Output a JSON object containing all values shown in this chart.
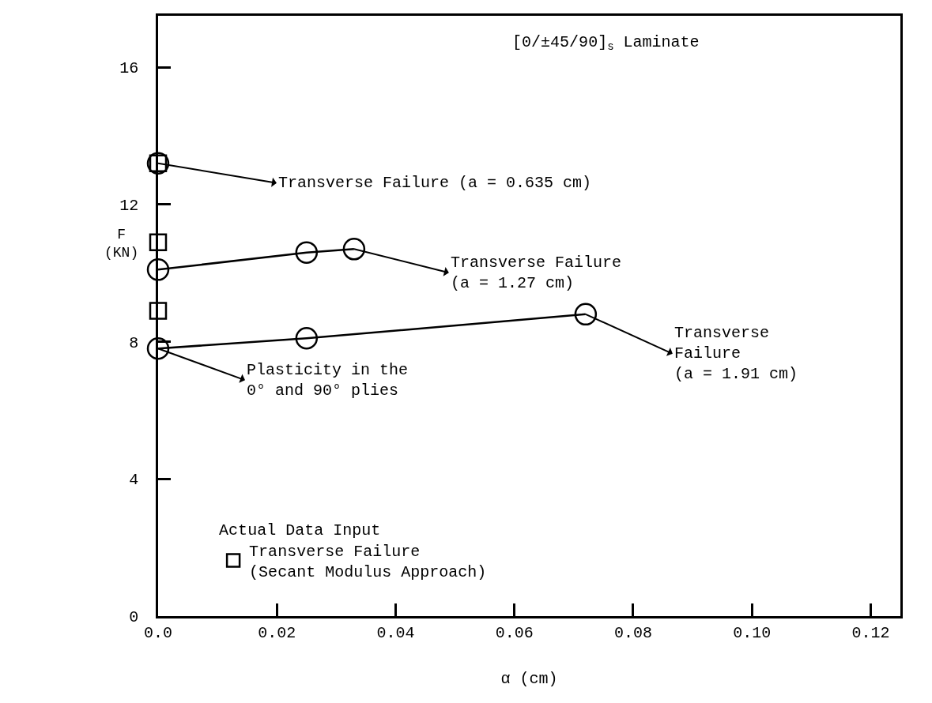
{
  "chart_data": {
    "type": "line",
    "title": "[0/±45/90]$_{s}$ Laminate",
    "xlabel": "α (cm)",
    "ylabel": "F\n(KN)",
    "legend_title": "Actual Data Input",
    "series": [
      {
        "color": "#000000",
        "x": [
          0.0
        ],
        "values": [
          13.2
        ]
      },
      {
        "color": "#000000",
        "x": [
          0.0,
          0.025,
          0.033
        ],
        "values": [
          10.1,
          10.6,
          10.7
        ]
      },
      {
        "color": "#000000",
        "x": [
          0.0,
          0.025,
          0.072
        ],
        "values": [
          7.8,
          8.1,
          8.8
        ]
      },
      {
        "type": "scatter",
        "name": "Transverse Failure\n(Secant Modulus Approach)",
        "color": "#000000",
        "marker": "square",
        "x": [
          0.0,
          0.0,
          0.0
        ],
        "values": [
          13.2,
          10.9,
          8.9
        ]
      }
    ],
    "marker": "circle",
    "annotations": [
      {
        "text": "Transverse Failure (a = 0.635 cm)",
        "x": 0.0,
        "y": 13.2
      },
      {
        "text": "Transverse Failure\n(a = 1.27 cm)",
        "x": 0.033,
        "y": 10.7
      },
      {
        "text": "Transverse\nFailure\n(a = 1.91 cm)",
        "x": 0.072,
        "y": 8.8
      },
      {
        "text": "Plasticity in the\n0° and 90° plies",
        "x": 0.0,
        "y": 7.8
      }
    ],
    "xlim": [
      0.0,
      0.125
    ],
    "ylim": [
      0,
      17.5
    ],
    "xticks": [
      {
        "value": 0.0,
        "label": "0.0"
      },
      0.02,
      0.04,
      0.06,
      0.08,
      {
        "value": 0.1,
        "label": "0.10"
      },
      0.12
    ],
    "yticks": [
      0,
      4,
      8,
      12,
      16
    ],
    "legend": "bottom left",
    "grid": false
  }
}
